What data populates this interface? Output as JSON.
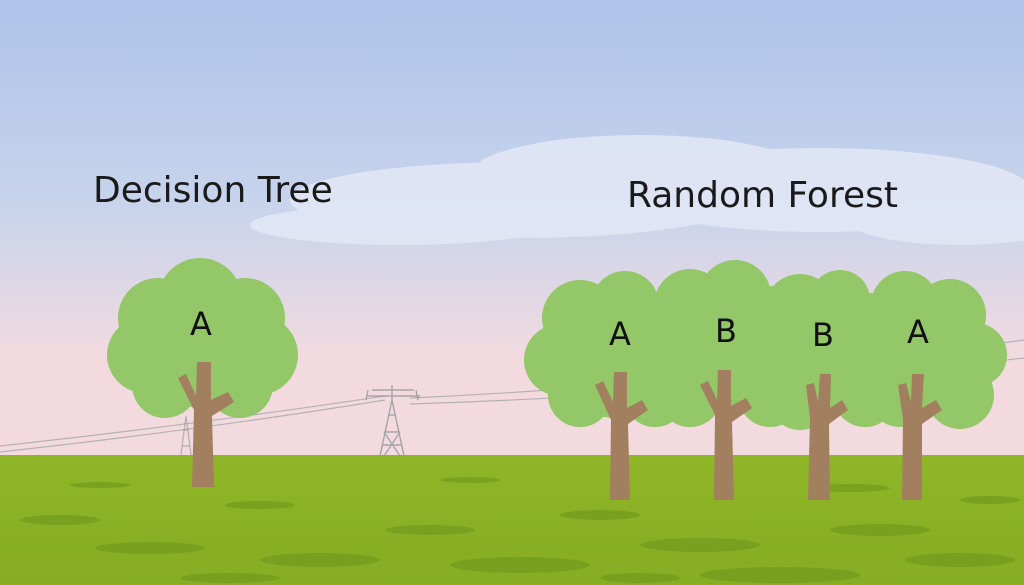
{
  "titles": {
    "single": "Decision Tree",
    "ensemble": "Random Forest"
  },
  "single_tree": {
    "label": "A"
  },
  "forest_trees": [
    {
      "label": "A"
    },
    {
      "label": "B"
    },
    {
      "label": "B"
    },
    {
      "label": "A"
    }
  ],
  "colors": {
    "sky_top": "#aec4e8",
    "sky_bottom": "#f2dadf",
    "canopy": "#93c767",
    "trunk": "#a2805f",
    "ground": "#8db522",
    "ground_dark": "#6f9620"
  }
}
